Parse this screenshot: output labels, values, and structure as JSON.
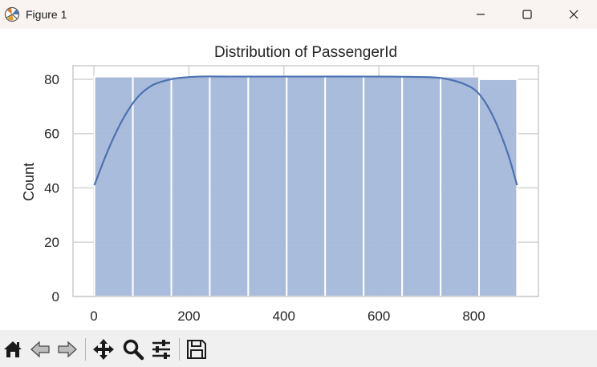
{
  "window": {
    "title": "Figure 1",
    "icon": "matplotlib-logo-icon",
    "controls": [
      "minimize-icon",
      "maximize-icon",
      "close-icon"
    ]
  },
  "toolbar": {
    "buttons": [
      "home-icon",
      "back-arrow-icon",
      "forward-arrow-icon",
      "pan-move-icon",
      "zoom-magnifier-icon",
      "configure-subplots-icon",
      "save-floppy-icon"
    ]
  },
  "colors": {
    "bar_fill": "#a5b8da",
    "kde_line": "#4c72b0",
    "grid": "#d4d4d4",
    "titlebar": "#f9f4f1",
    "toolbar": "#f0f0f0"
  },
  "chart_data": {
    "type": "bar",
    "title": "Distribution of PassengerId",
    "xlabel": "",
    "ylabel": "Count",
    "bin_edges": [
      1,
      82,
      163,
      244,
      325,
      406,
      487,
      568,
      649,
      730,
      811,
      891
    ],
    "values": [
      81,
      81,
      81,
      81,
      81,
      81,
      81,
      81,
      81,
      81,
      80
    ],
    "kde": {
      "x": [
        1,
        30,
        60,
        90,
        120,
        150,
        180,
        220,
        300,
        446,
        600,
        700,
        740,
        780,
        810,
        840,
        870,
        891
      ],
      "y": [
        41,
        54,
        65,
        73,
        77.5,
        79.5,
        80.5,
        81,
        81,
        81,
        81,
        80.8,
        80.2,
        78.2,
        74.8,
        66.5,
        53.5,
        41
      ]
    },
    "xlim": [
      -44,
      936
    ],
    "ylim": [
      0,
      85
    ],
    "xticks": [
      0,
      200,
      400,
      600,
      800
    ],
    "yticks": [
      0,
      20,
      40,
      60,
      80
    ],
    "grid": true,
    "legend": "none"
  }
}
